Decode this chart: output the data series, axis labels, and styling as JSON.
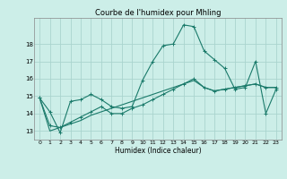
{
  "title": "Courbe de l'humidex pour Mhling",
  "xlabel": "Humidex (Indice chaleur)",
  "bg_color": "#cceee8",
  "grid_color": "#aad4ce",
  "line_color": "#1a7a6a",
  "x_values": [
    0,
    1,
    2,
    3,
    4,
    5,
    6,
    7,
    8,
    9,
    10,
    11,
    12,
    13,
    14,
    15,
    16,
    17,
    18,
    19,
    20,
    21,
    22,
    23
  ],
  "series1": [
    14.9,
    14.1,
    12.9,
    14.7,
    14.8,
    15.1,
    14.8,
    14.4,
    14.3,
    14.4,
    15.9,
    17.0,
    17.9,
    18.0,
    19.1,
    19.0,
    17.6,
    17.1,
    16.6,
    15.4,
    15.5,
    17.0,
    14.0,
    15.4
  ],
  "series2": [
    14.9,
    13.3,
    13.2,
    13.5,
    13.8,
    14.1,
    14.4,
    14.0,
    14.0,
    14.3,
    14.5,
    14.8,
    15.1,
    15.4,
    15.7,
    16.0,
    15.5,
    15.3,
    15.4,
    15.5,
    15.6,
    15.7,
    15.5,
    15.5
  ],
  "series3": [
    14.9,
    13.0,
    13.2,
    13.4,
    13.6,
    13.9,
    14.1,
    14.3,
    14.5,
    14.7,
    14.9,
    15.1,
    15.3,
    15.5,
    15.7,
    15.9,
    15.5,
    15.3,
    15.4,
    15.5,
    15.6,
    15.7,
    15.5,
    15.5
  ],
  "ylim": [
    12.5,
    19.5
  ],
  "xlim": [
    -0.5,
    23.5
  ],
  "yticks": [
    13,
    14,
    15,
    16,
    17,
    18
  ],
  "title_fontsize": 6.0,
  "xlabel_fontsize": 5.5,
  "tick_fontsize": 4.5
}
